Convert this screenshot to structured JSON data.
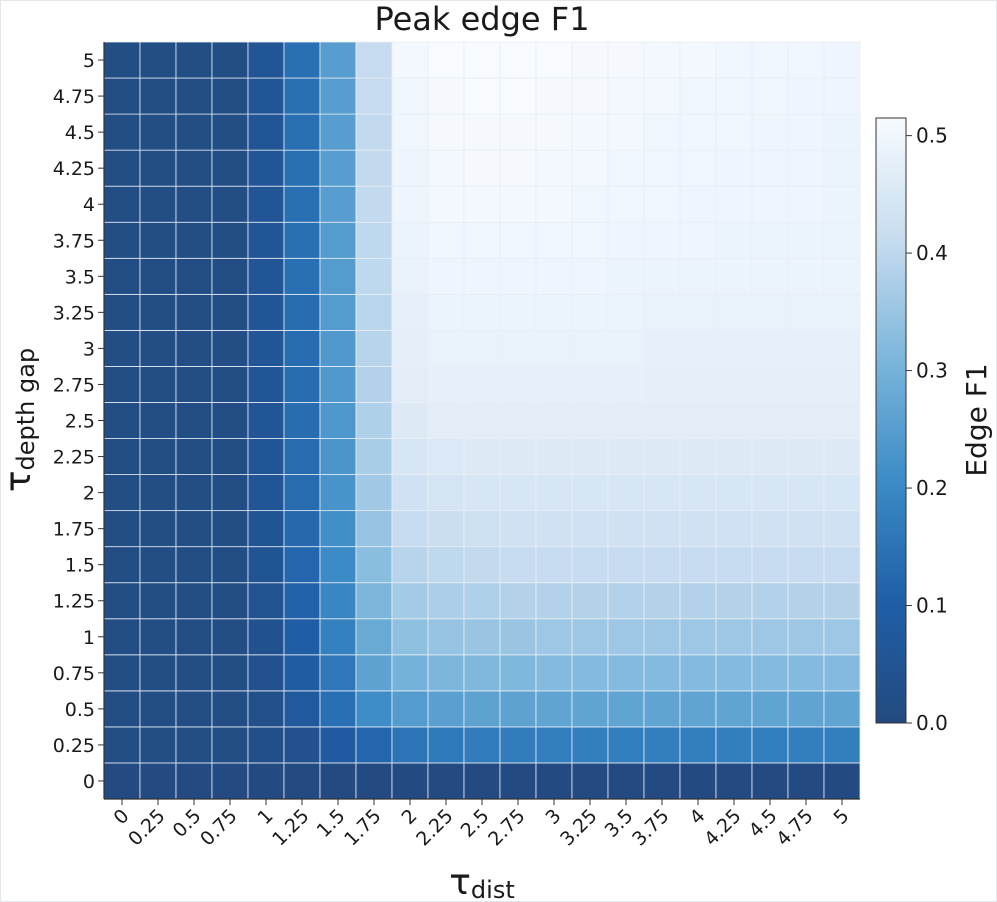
{
  "chart_data": {
    "type": "heatmap",
    "title": "Peak edge F1",
    "xlabel_main": "τ",
    "xlabel_sub": "dist",
    "ylabel_main": "τ",
    "ylabel_sub": "depth gap",
    "x_categories": [
      "0",
      "0.25",
      "0.5",
      "0.75",
      "1",
      "1.25",
      "1.5",
      "1.75",
      "2",
      "2.25",
      "2.5",
      "2.75",
      "3",
      "3.25",
      "3.5",
      "3.75",
      "4",
      "4.25",
      "4.5",
      "4.75",
      "5"
    ],
    "y_categories": [
      "0",
      "0.25",
      "0.5",
      "0.75",
      "1",
      "1.25",
      "1.5",
      "1.75",
      "2",
      "2.25",
      "2.5",
      "2.75",
      "3",
      "3.25",
      "3.5",
      "3.75",
      "4",
      "4.25",
      "4.5",
      "4.75",
      "5"
    ],
    "colorbar": {
      "label": "Edge F1",
      "vmin": 0.0,
      "vmax": 0.515,
      "ticks": [
        "0.0",
        "0.1",
        "0.2",
        "0.3",
        "0.4",
        "0.5"
      ],
      "colors": [
        "#234a7f",
        "#1f5fa8",
        "#3c8bc6",
        "#7bb6db",
        "#c7dcef",
        "#f7fbff"
      ]
    },
    "values_by_y": [
      [
        0.005,
        0.005,
        0.005,
        0.005,
        0.005,
        0.005,
        0.005,
        0.005,
        0.005,
        0.005,
        0.005,
        0.005,
        0.005,
        0.005,
        0.005,
        0.005,
        0.005,
        0.005,
        0.005,
        0.005,
        0.005
      ],
      [
        0.015,
        0.015,
        0.015,
        0.015,
        0.025,
        0.035,
        0.085,
        0.12,
        0.155,
        0.165,
        0.17,
        0.17,
        0.175,
        0.175,
        0.175,
        0.175,
        0.175,
        0.175,
        0.175,
        0.175,
        0.175
      ],
      [
        0.015,
        0.015,
        0.015,
        0.015,
        0.03,
        0.075,
        0.14,
        0.21,
        0.245,
        0.255,
        0.26,
        0.26,
        0.265,
        0.265,
        0.265,
        0.265,
        0.265,
        0.265,
        0.265,
        0.265,
        0.265
      ],
      [
        0.015,
        0.015,
        0.015,
        0.015,
        0.035,
        0.09,
        0.16,
        0.26,
        0.3,
        0.31,
        0.315,
        0.315,
        0.32,
        0.32,
        0.32,
        0.32,
        0.32,
        0.32,
        0.32,
        0.32,
        0.32
      ],
      [
        0.015,
        0.015,
        0.015,
        0.015,
        0.04,
        0.1,
        0.18,
        0.28,
        0.335,
        0.345,
        0.35,
        0.35,
        0.355,
        0.355,
        0.355,
        0.355,
        0.355,
        0.355,
        0.355,
        0.355,
        0.355
      ],
      [
        0.015,
        0.015,
        0.015,
        0.015,
        0.045,
        0.11,
        0.195,
        0.31,
        0.365,
        0.375,
        0.38,
        0.385,
        0.385,
        0.385,
        0.385,
        0.385,
        0.385,
        0.385,
        0.385,
        0.385,
        0.385
      ],
      [
        0.015,
        0.015,
        0.015,
        0.015,
        0.05,
        0.12,
        0.205,
        0.33,
        0.39,
        0.4,
        0.405,
        0.41,
        0.41,
        0.41,
        0.41,
        0.41,
        0.41,
        0.41,
        0.41,
        0.41,
        0.41
      ],
      [
        0.015,
        0.015,
        0.015,
        0.015,
        0.05,
        0.125,
        0.215,
        0.345,
        0.41,
        0.42,
        0.425,
        0.43,
        0.43,
        0.43,
        0.43,
        0.43,
        0.43,
        0.43,
        0.43,
        0.43,
        0.43
      ],
      [
        0.015,
        0.015,
        0.015,
        0.015,
        0.055,
        0.13,
        0.225,
        0.36,
        0.43,
        0.44,
        0.445,
        0.445,
        0.445,
        0.445,
        0.445,
        0.445,
        0.445,
        0.445,
        0.445,
        0.445,
        0.445
      ],
      [
        0.015,
        0.015,
        0.015,
        0.015,
        0.055,
        0.13,
        0.23,
        0.37,
        0.445,
        0.455,
        0.46,
        0.46,
        0.46,
        0.46,
        0.46,
        0.46,
        0.46,
        0.46,
        0.46,
        0.46,
        0.46
      ],
      [
        0.015,
        0.015,
        0.015,
        0.015,
        0.055,
        0.135,
        0.235,
        0.38,
        0.46,
        0.47,
        0.47,
        0.47,
        0.47,
        0.47,
        0.47,
        0.47,
        0.47,
        0.47,
        0.47,
        0.47,
        0.47
      ],
      [
        0.015,
        0.015,
        0.015,
        0.015,
        0.055,
        0.135,
        0.24,
        0.385,
        0.47,
        0.48,
        0.48,
        0.48,
        0.48,
        0.48,
        0.48,
        0.475,
        0.475,
        0.475,
        0.475,
        0.475,
        0.475
      ],
      [
        0.015,
        0.015,
        0.015,
        0.015,
        0.055,
        0.135,
        0.24,
        0.39,
        0.475,
        0.485,
        0.485,
        0.485,
        0.485,
        0.485,
        0.485,
        0.48,
        0.48,
        0.48,
        0.48,
        0.48,
        0.48
      ],
      [
        0.015,
        0.015,
        0.015,
        0.015,
        0.055,
        0.135,
        0.245,
        0.395,
        0.48,
        0.49,
        0.49,
        0.49,
        0.49,
        0.49,
        0.49,
        0.485,
        0.485,
        0.485,
        0.485,
        0.485,
        0.485
      ],
      [
        0.015,
        0.015,
        0.015,
        0.015,
        0.055,
        0.14,
        0.245,
        0.4,
        0.485,
        0.495,
        0.495,
        0.495,
        0.495,
        0.495,
        0.49,
        0.49,
        0.49,
        0.49,
        0.49,
        0.49,
        0.49
      ],
      [
        0.015,
        0.015,
        0.015,
        0.015,
        0.055,
        0.14,
        0.245,
        0.4,
        0.49,
        0.5,
        0.5,
        0.5,
        0.5,
        0.5,
        0.495,
        0.495,
        0.495,
        0.49,
        0.49,
        0.49,
        0.49
      ],
      [
        0.015,
        0.015,
        0.015,
        0.015,
        0.055,
        0.14,
        0.25,
        0.405,
        0.495,
        0.505,
        0.505,
        0.505,
        0.505,
        0.5,
        0.5,
        0.5,
        0.495,
        0.495,
        0.495,
        0.495,
        0.49
      ],
      [
        0.015,
        0.015,
        0.015,
        0.015,
        0.055,
        0.14,
        0.25,
        0.405,
        0.495,
        0.505,
        0.51,
        0.51,
        0.505,
        0.505,
        0.5,
        0.5,
        0.5,
        0.495,
        0.495,
        0.495,
        0.49
      ],
      [
        0.015,
        0.015,
        0.015,
        0.015,
        0.055,
        0.14,
        0.25,
        0.405,
        0.5,
        0.51,
        0.51,
        0.51,
        0.51,
        0.505,
        0.505,
        0.5,
        0.5,
        0.5,
        0.495,
        0.495,
        0.49
      ],
      [
        0.015,
        0.015,
        0.015,
        0.015,
        0.055,
        0.14,
        0.25,
        0.41,
        0.5,
        0.51,
        0.515,
        0.515,
        0.51,
        0.51,
        0.505,
        0.505,
        0.5,
        0.5,
        0.5,
        0.495,
        0.495
      ],
      [
        0.015,
        0.015,
        0.015,
        0.015,
        0.055,
        0.14,
        0.25,
        0.41,
        0.505,
        0.515,
        0.515,
        0.515,
        0.515,
        0.51,
        0.51,
        0.505,
        0.505,
        0.5,
        0.5,
        0.5,
        0.495
      ]
    ]
  }
}
